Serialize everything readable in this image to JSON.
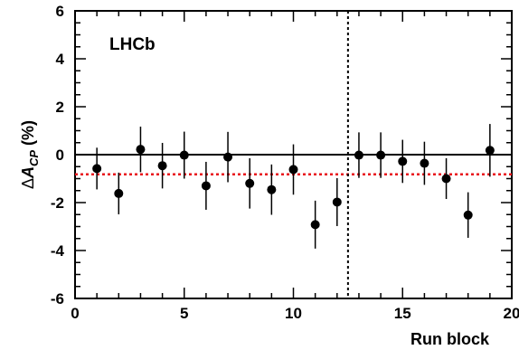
{
  "chart_data": {
    "type": "scatter",
    "xlabel": "Run block",
    "ylabel": "ΔA_CP (%)",
    "ylabel_parts": {
      "delta": "Δ",
      "a": "A",
      "sub": "CP",
      "unit": " (%)"
    },
    "xlim": [
      0,
      20
    ],
    "ylim": [
      -6,
      6
    ],
    "x_ticks": [
      0,
      5,
      10,
      15,
      20
    ],
    "y_ticks": [
      -6,
      -4,
      -2,
      0,
      2,
      4,
      6
    ],
    "grid": false,
    "annotation": "LHCb",
    "reference_lines": {
      "zero": {
        "y": 0,
        "color": "#000000",
        "style": "solid"
      },
      "average": {
        "y": -0.82,
        "color": "#e8121b",
        "style": "dotted"
      },
      "separator": {
        "x": 12.5,
        "color": "#000000",
        "style": "dotted"
      }
    },
    "points": [
      {
        "x": 1,
        "y": -0.58,
        "err": 0.87
      },
      {
        "x": 2,
        "y": -1.62,
        "err": 0.87
      },
      {
        "x": 3,
        "y": 0.22,
        "err": 0.95
      },
      {
        "x": 4,
        "y": -0.46,
        "err": 0.95
      },
      {
        "x": 5,
        "y": -0.02,
        "err": 0.98
      },
      {
        "x": 6,
        "y": -1.3,
        "err": 1.0
      },
      {
        "x": 7,
        "y": -0.1,
        "err": 1.05
      },
      {
        "x": 8,
        "y": -1.2,
        "err": 1.05
      },
      {
        "x": 9,
        "y": -1.46,
        "err": 1.05
      },
      {
        "x": 10,
        "y": -0.62,
        "err": 1.05
      },
      {
        "x": 11,
        "y": -2.92,
        "err": 1.0
      },
      {
        "x": 12,
        "y": -1.98,
        "err": 1.0
      },
      {
        "x": 13,
        "y": -0.02,
        "err": 0.95
      },
      {
        "x": 14,
        "y": -0.02,
        "err": 0.95
      },
      {
        "x": 15,
        "y": -0.28,
        "err": 0.9
      },
      {
        "x": 16,
        "y": -0.36,
        "err": 0.9
      },
      {
        "x": 17,
        "y": -1.0,
        "err": 0.85
      },
      {
        "x": 18,
        "y": -2.52,
        "err": 0.95
      },
      {
        "x": 19,
        "y": 0.18,
        "err": 1.1
      }
    ]
  }
}
